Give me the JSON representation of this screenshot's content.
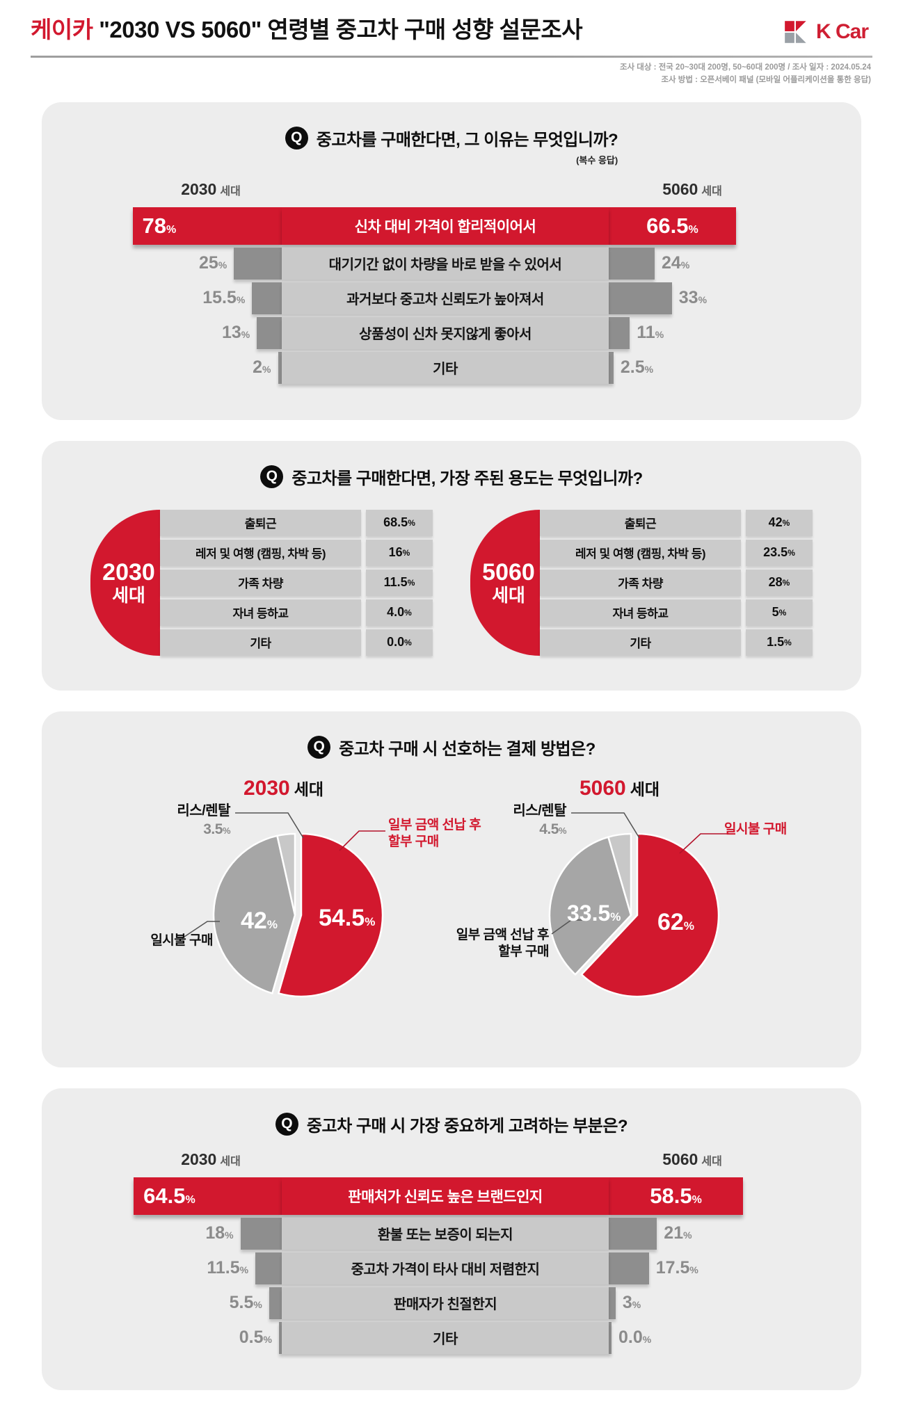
{
  "pct": "%",
  "colors": {
    "brand_red": "#d2182e",
    "bar_gray": "#c9c9c9",
    "stub_gray": "#8e8e8e",
    "card_bg": "#ededed",
    "pie_slices": [
      "#d2182e",
      "#a6a6a6",
      "#c8c8c8"
    ]
  },
  "header": {
    "title_brand": "케이카",
    "title_rest": " \"2030 VS 5060\" 연령별 중고차 구매 성향 설문조사",
    "logo_text": "K Car",
    "meta_line1": "조사 대상 : 전국 20~30대 200명, 50~60대 200명 / 조사 일자 : 2024.05.24",
    "meta_line2": "조사 방법 : 오픈서베이 패널 (모바일 어플리케이션을 통한 응답)"
  },
  "q_badge": "Q",
  "s1": {
    "question": "중고차를 구매한다면, 그 이유는 무엇입니까?",
    "note": "(복수 응답)",
    "left_gen": "2030",
    "right_gen": "5060",
    "gen_suf": "세대",
    "rows": [
      {
        "label": "신차 대비 가격이 합리적이어서",
        "left": "78",
        "right": "66.5"
      },
      {
        "label": "대기기간 없이 차량을 바로 받을 수 있어서",
        "left": "25",
        "right": "24"
      },
      {
        "label": "과거보다 중고차 신뢰도가 높아져서",
        "left": "15.5",
        "right": "33"
      },
      {
        "label": "상품성이 신차 못지않게 좋아서",
        "left": "13",
        "right": "11"
      },
      {
        "label": "기타",
        "left": "2",
        "right": "2.5"
      }
    ]
  },
  "s2": {
    "question": "중고차를 구매한다면, 가장 주된 용도는 무엇입니까?",
    "groups": [
      {
        "gen": "2030",
        "gen_suf": "세대",
        "rows": [
          {
            "label": "출퇴근",
            "value": "68.5"
          },
          {
            "label": "레저 및 여행 (캠핑, 차박 등)",
            "value": "16"
          },
          {
            "label": "가족 차량",
            "value": "11.5"
          },
          {
            "label": "자녀 등하교",
            "value": "4.0"
          },
          {
            "label": "기타",
            "value": "0.0"
          }
        ]
      },
      {
        "gen": "5060",
        "gen_suf": "세대",
        "rows": [
          {
            "label": "출퇴근",
            "value": "42"
          },
          {
            "label": "레저 및 여행 (캠핑, 차박 등)",
            "value": "23.5"
          },
          {
            "label": "가족 차량",
            "value": "28"
          },
          {
            "label": "자녀 등하교",
            "value": "5"
          },
          {
            "label": "기타",
            "value": "1.5"
          }
        ]
      }
    ]
  },
  "s3": {
    "question": "중고차 구매 시 선호하는 결제 방법은?",
    "groups": [
      {
        "gen": "2030",
        "gen_suf": "세대",
        "lease_label": "리스/렌탈",
        "lease_val": "3.5",
        "right_l1": "일부 금액 선납 후",
        "right_l2": "할부 구매",
        "left_l1": "일시불 구매",
        "left_l2": "",
        "val_main": "54.5",
        "val_sub": "42"
      },
      {
        "gen": "5060",
        "gen_suf": "세대",
        "lease_label": "리스/렌탈",
        "lease_val": "4.5",
        "right_l1": "일시불 구매",
        "right_l2": "",
        "left_l1": "일부 금액 선납 후",
        "left_l2": "할부 구매",
        "val_main": "62",
        "val_sub": "33.5"
      }
    ]
  },
  "s4": {
    "question": "중고차 구매 시 가장 중요하게 고려하는 부분은?",
    "left_gen": "2030",
    "right_gen": "5060",
    "gen_suf": "세대",
    "rows": [
      {
        "label": "판매처가 신뢰도 높은 브랜드인지",
        "left": "64.5",
        "right": "58.5"
      },
      {
        "label": "환불 또는 보증이 되는지",
        "left": "18",
        "right": "21"
      },
      {
        "label": "중고차 가격이 타사 대비 저렴한지",
        "left": "11.5",
        "right": "17.5"
      },
      {
        "label": "판매자가 친절한지",
        "left": "5.5",
        "right": "3"
      },
      {
        "label": "기타",
        "left": "0.5",
        "right": "0.0"
      }
    ]
  },
  "chart_data": [
    {
      "type": "bar",
      "orientation": "horizontal-paired",
      "unit": "%",
      "title": "중고차를 구매한다면, 그 이유는 무엇입니까? (복수 응답)",
      "categories": [
        "신차 대비 가격이 합리적이어서",
        "대기기간 없이 차량을 바로 받을 수 있어서",
        "과거보다 중고차 신뢰도가 높아져서",
        "상품성이 신차 못지않게 좋아서",
        "기타"
      ],
      "series": [
        {
          "name": "2030 세대",
          "values": [
            78,
            25,
            15.5,
            13,
            2
          ]
        },
        {
          "name": "5060 세대",
          "values": [
            66.5,
            24,
            33,
            11,
            2.5
          ]
        }
      ]
    },
    {
      "type": "table",
      "unit": "%",
      "title": "중고차를 구매한다면, 가장 주된 용도는 무엇입니까?",
      "categories": [
        "출퇴근",
        "레저 및 여행 (캠핑, 차박 등)",
        "가족 차량",
        "자녀 등하교",
        "기타"
      ],
      "series": [
        {
          "name": "2030 세대",
          "values": [
            68.5,
            16,
            11.5,
            4.0,
            0.0
          ]
        },
        {
          "name": "5060 세대",
          "values": [
            42,
            23.5,
            28,
            5,
            1.5
          ]
        }
      ]
    },
    {
      "type": "pie",
      "unit": "%",
      "title": "중고차 구매 시 선호하는 결제 방법은?",
      "series": [
        {
          "name": "2030 세대",
          "labels": [
            "일부 금액 선납 후 할부 구매",
            "일시불 구매",
            "리스/렌탈"
          ],
          "values": [
            54.5,
            42,
            3.5
          ]
        },
        {
          "name": "5060 세대",
          "labels": [
            "일시불 구매",
            "일부 금액 선납 후 할부 구매",
            "리스/렌탈"
          ],
          "values": [
            62,
            33.5,
            4.5
          ]
        }
      ]
    },
    {
      "type": "bar",
      "orientation": "horizontal-paired",
      "unit": "%",
      "title": "중고차 구매 시 가장 중요하게 고려하는 부분은?",
      "categories": [
        "판매처가 신뢰도 높은 브랜드인지",
        "환불 또는 보증이 되는지",
        "중고차 가격이 타사 대비 저렴한지",
        "판매자가 친절한지",
        "기타"
      ],
      "series": [
        {
          "name": "2030 세대",
          "values": [
            64.5,
            18,
            11.5,
            5.5,
            0.5
          ]
        },
        {
          "name": "5060 세대",
          "values": [
            58.5,
            21,
            17.5,
            3,
            0.0
          ]
        }
      ]
    }
  ]
}
